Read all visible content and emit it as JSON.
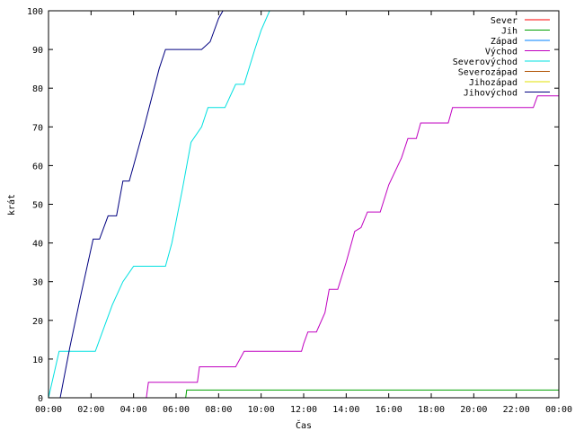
{
  "chart_data": {
    "type": "line",
    "title": "",
    "xlabel": "Čas",
    "ylabel": "krát",
    "xlim": [
      0,
      24
    ],
    "ylim": [
      0,
      100
    ],
    "grid": false,
    "legend_placement": "top-right",
    "xticks": [
      "00:00",
      "02:00",
      "04:00",
      "06:00",
      "08:00",
      "10:00",
      "12:00",
      "14:00",
      "16:00",
      "18:00",
      "20:00",
      "22:00",
      "00:00"
    ],
    "yticks": [
      "0",
      "10",
      "20",
      "30",
      "40",
      "50",
      "60",
      "70",
      "80",
      "90",
      "100"
    ],
    "series": [
      {
        "name": "Sever",
        "color": "#ff0000",
        "points": []
      },
      {
        "name": "Jih",
        "color": "#00a000",
        "points": [
          [
            6.45,
            0
          ],
          [
            6.5,
            2
          ],
          [
            24,
            2
          ]
        ]
      },
      {
        "name": "Západ",
        "color": "#0080ff",
        "points": []
      },
      {
        "name": "Východ",
        "color": "#c000c0",
        "points": [
          [
            4.6,
            0
          ],
          [
            4.7,
            4
          ],
          [
            7.0,
            4
          ],
          [
            7.1,
            8
          ],
          [
            8.8,
            8
          ],
          [
            9.0,
            10
          ],
          [
            9.2,
            12
          ],
          [
            11.9,
            12
          ],
          [
            12.0,
            14
          ],
          [
            12.2,
            17
          ],
          [
            12.6,
            17
          ],
          [
            13.0,
            22
          ],
          [
            13.2,
            28
          ],
          [
            13.6,
            28
          ],
          [
            14.0,
            35
          ],
          [
            14.4,
            43
          ],
          [
            14.7,
            44
          ],
          [
            15.0,
            48
          ],
          [
            15.6,
            48
          ],
          [
            16.0,
            55
          ],
          [
            16.6,
            62
          ],
          [
            16.9,
            67
          ],
          [
            17.3,
            67
          ],
          [
            17.5,
            71
          ],
          [
            18.8,
            71
          ],
          [
            19.0,
            75
          ],
          [
            22.8,
            75
          ],
          [
            23.0,
            78
          ],
          [
            24,
            78
          ]
        ]
      },
      {
        "name": "Severovýchod",
        "color": "#00e0e0",
        "points": [
          [
            0,
            0
          ],
          [
            0.5,
            12
          ],
          [
            2.2,
            12
          ],
          [
            2.6,
            18
          ],
          [
            3.0,
            24
          ],
          [
            3.5,
            30
          ],
          [
            4.0,
            34
          ],
          [
            5.5,
            34
          ],
          [
            5.8,
            40
          ],
          [
            6.3,
            54
          ],
          [
            6.7,
            66
          ],
          [
            7.2,
            70
          ],
          [
            7.5,
            75
          ],
          [
            8.3,
            75
          ],
          [
            8.8,
            81
          ],
          [
            9.2,
            81
          ],
          [
            9.7,
            90
          ],
          [
            10.0,
            95
          ],
          [
            10.4,
            100
          ]
        ]
      },
      {
        "name": "Severozápad",
        "color": "#b05000",
        "points": []
      },
      {
        "name": "Jihozápad",
        "color": "#e0e000",
        "points": []
      },
      {
        "name": "Jihovýchod",
        "color": "#000080",
        "points": [
          [
            0.55,
            0
          ],
          [
            1.0,
            13
          ],
          [
            1.5,
            26
          ],
          [
            2.1,
            41
          ],
          [
            2.4,
            41
          ],
          [
            2.8,
            47
          ],
          [
            3.2,
            47
          ],
          [
            3.5,
            56
          ],
          [
            3.8,
            56
          ],
          [
            4.0,
            60
          ],
          [
            4.5,
            70
          ],
          [
            5.2,
            85
          ],
          [
            5.5,
            90
          ],
          [
            7.2,
            90
          ],
          [
            7.6,
            92
          ],
          [
            8.0,
            98
          ],
          [
            8.2,
            100
          ]
        ]
      }
    ]
  }
}
